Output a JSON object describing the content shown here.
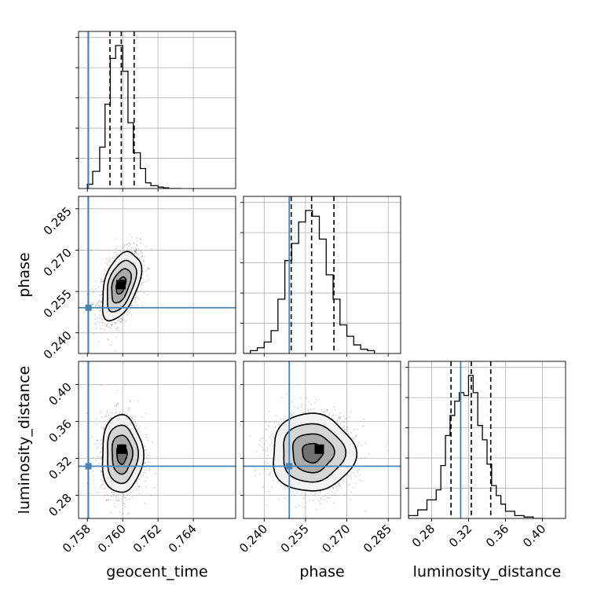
{
  "chart_data": {
    "type": "corner",
    "parameters": [
      "geocent_time",
      "phase",
      "luminosity_distance"
    ],
    "ranges": {
      "geocent_time": [
        0.7575,
        0.7664
      ],
      "phase": [
        0.2325,
        0.2895
      ],
      "luminosity_distance": [
        0.255,
        0.425
      ]
    },
    "ticks": {
      "geocent_time": [
        0.758,
        0.76,
        0.762,
        0.764
      ],
      "phase": [
        0.24,
        0.255,
        0.27,
        0.285
      ],
      "luminosity_distance": [
        0.28,
        0.32,
        0.36,
        0.4
      ]
    },
    "tick_labels": {
      "geocent_time": [
        "0.758",
        "0.760",
        "0.762",
        "0.764"
      ],
      "phase": [
        "0.240",
        "0.255",
        "0.270",
        "0.285"
      ],
      "luminosity_distance": [
        "0.28",
        "0.32",
        "0.36",
        "0.40"
      ]
    },
    "truths": {
      "geocent_time": 0.75806,
      "phase": 0.2491,
      "luminosity_distance": 0.3115
    },
    "quantiles": {
      "geocent_time": [
        0.75928,
        0.75992,
        0.76065
      ],
      "phase": [
        0.2498,
        0.2572,
        0.2653
      ],
      "luminosity_distance": [
        0.301,
        0.323,
        0.344
      ]
    },
    "histograms": {
      "geocent_time": {
        "edges": [
          0.758,
          0.7583,
          0.7587,
          0.759,
          0.7593,
          0.7596,
          0.76,
          0.7603,
          0.7606,
          0.761,
          0.7613,
          0.7616,
          0.762,
          0.7623,
          0.7626,
          0.763,
          0.7633
        ],
        "counts": [
          0.03,
          0.12,
          0.29,
          0.59,
          0.91,
          1.0,
          0.82,
          0.46,
          0.25,
          0.14,
          0.04,
          0.02,
          0.01,
          0.005,
          0.0,
          0.0
        ]
      },
      "phase": {
        "edges": [
          0.2325,
          0.235,
          0.2375,
          0.24,
          0.2425,
          0.245,
          0.2475,
          0.25,
          0.2525,
          0.255,
          0.2575,
          0.26,
          0.2625,
          0.265,
          0.2675,
          0.27,
          0.2725,
          0.275,
          0.2775,
          0.28
        ],
        "counts": [
          0.0,
          0.02,
          0.04,
          0.08,
          0.16,
          0.38,
          0.65,
          0.77,
          0.92,
          1.0,
          0.96,
          0.8,
          0.55,
          0.38,
          0.2,
          0.12,
          0.06,
          0.03,
          0.02
        ]
      },
      "luminosity_distance": {
        "edges": [
          0.255,
          0.265,
          0.275,
          0.285,
          0.29,
          0.295,
          0.3,
          0.305,
          0.31,
          0.315,
          0.32,
          0.325,
          0.33,
          0.335,
          0.34,
          0.345,
          0.35,
          0.355,
          0.36,
          0.37,
          0.38,
          0.39,
          0.4
        ],
        "counts": [
          0.02,
          0.06,
          0.13,
          0.2,
          0.37,
          0.58,
          0.72,
          0.82,
          0.88,
          0.86,
          1.0,
          0.88,
          0.65,
          0.55,
          0.38,
          0.23,
          0.16,
          0.1,
          0.05,
          0.02,
          0.01,
          0.0
        ]
      }
    },
    "pairs": [
      {
        "x": "geocent_time",
        "y": "phase",
        "center": [
          0.7599,
          0.2572
        ],
        "sigma": [
          0.00055,
          0.0062
        ],
        "rho": 0.45,
        "peak_cell": [
          0.7599,
          0.2575
        ]
      },
      {
        "x": "geocent_time",
        "y": "luminosity_distance",
        "center": [
          0.75995,
          0.3245
        ],
        "sigma": [
          0.00058,
          0.021
        ],
        "rho": 0.0,
        "peak_cell": [
          0.75995,
          0.33
        ]
      },
      {
        "x": "phase",
        "y": "luminosity_distance",
        "center": [
          0.2575,
          0.326
        ],
        "sigma": [
          0.0075,
          0.021
        ],
        "rho": 0.0,
        "peak_cell": [
          0.26,
          0.33
        ]
      }
    ],
    "contour_levels_sigma": [
      0.5,
      1.0,
      1.5,
      2.0
    ],
    "truth_color": "#4682b4",
    "line_color": "#000000",
    "grid": true,
    "axis_labels": {
      "geocent_time": "geocent_time",
      "phase": "phase",
      "luminosity_distance": "luminosity_distance"
    }
  }
}
